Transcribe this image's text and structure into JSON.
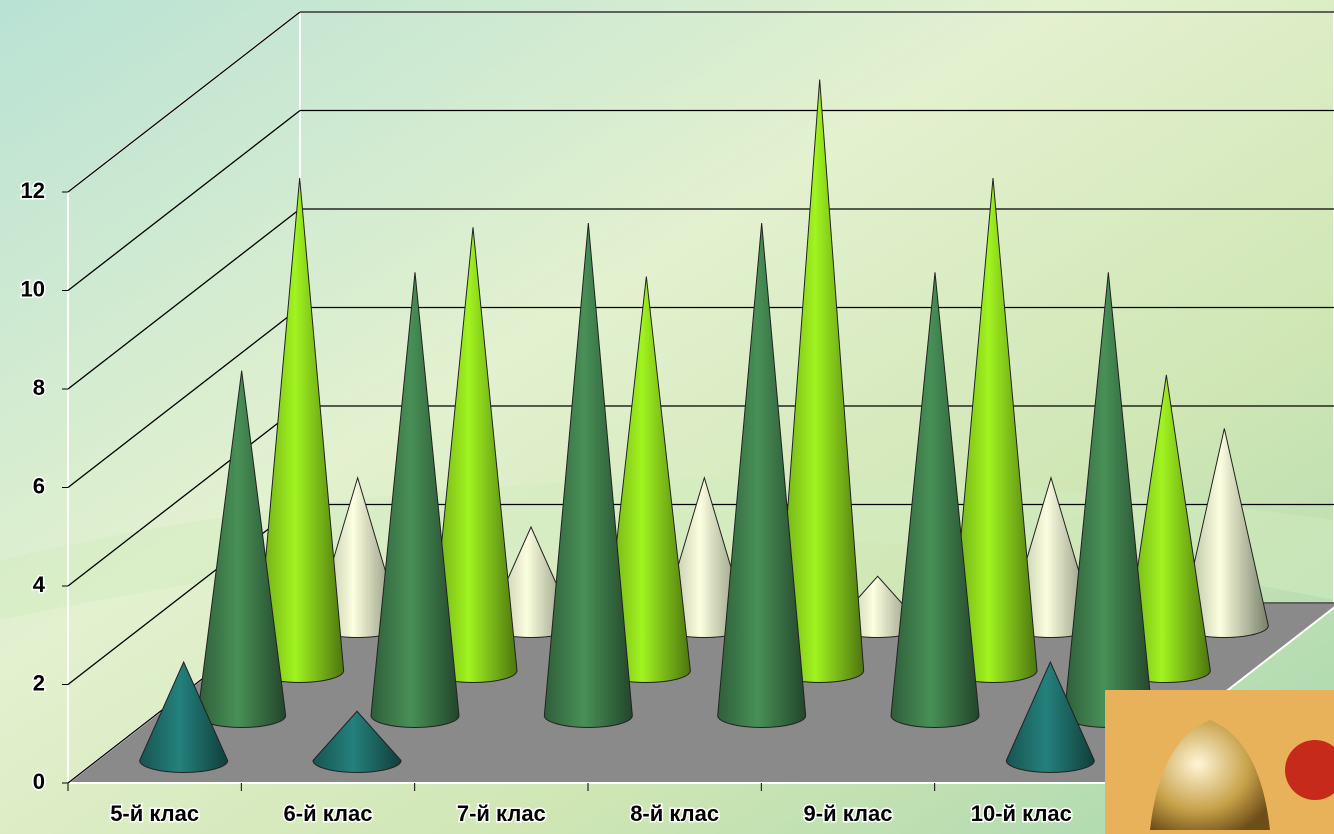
{
  "chart_data": {
    "type": "cone3d",
    "categories": [
      "5-й клас",
      "6-й клас",
      "7-й клас",
      "8-й клас",
      "9-й клас",
      "10-й клас"
    ],
    "series": [
      {
        "color": "#1f706c",
        "values": [
          2,
          1,
          0,
          0,
          0,
          2
        ]
      },
      {
        "color": "#3f7d4c",
        "values": [
          7,
          9,
          10,
          10,
          9,
          9
        ]
      },
      {
        "color": "#8cd41c",
        "values": [
          10,
          9,
          8,
          12,
          10,
          6
        ]
      },
      {
        "color": "#dbe8c2",
        "values": [
          3,
          2,
          3,
          1,
          3,
          4
        ]
      }
    ],
    "ylim": [
      0,
      12
    ],
    "yticks": [
      0,
      2,
      4,
      6,
      8,
      10,
      12
    ],
    "grid": true
  }
}
